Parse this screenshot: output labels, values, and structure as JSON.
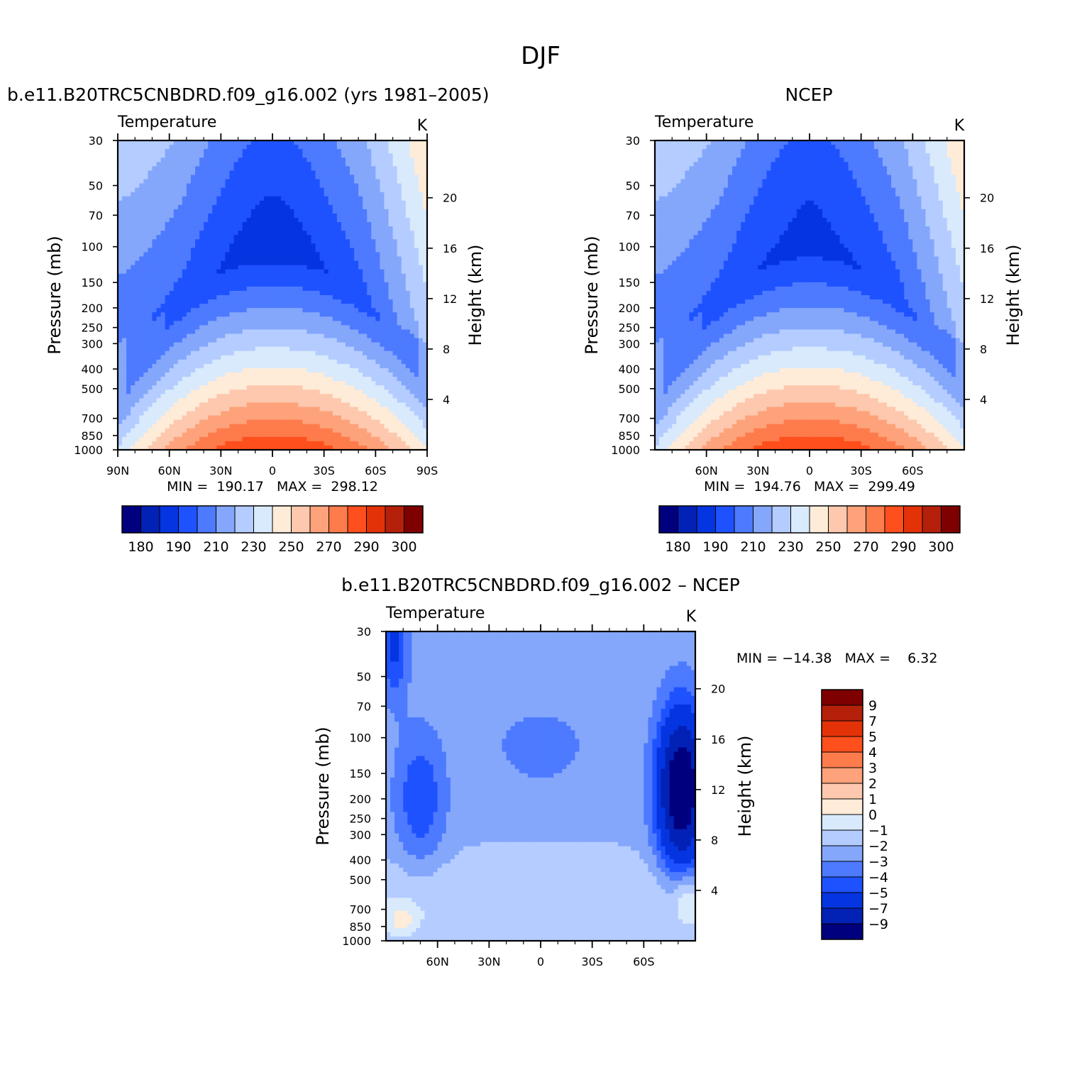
{
  "figure": {
    "title": "DJF",
    "panels": [
      {
        "id": "model",
        "title": "b.e11.B20TRC5CNBDRD.f09_g16.002 (yrs 1981–2005)",
        "field_label": "Temperature",
        "units": "K",
        "min_max": "MIN =  190.17   MAX =  298.12"
      },
      {
        "id": "obs",
        "title": "NCEP",
        "field_label": "Temperature",
        "units": "K",
        "min_max": "MIN =  194.76   MAX =  299.49"
      },
      {
        "id": "diff",
        "title": "b.e11.B20TRC5CNBDRD.f09_g16.002 – NCEP",
        "field_label": "Temperature",
        "units": "K",
        "min_max": "MIN = −14.38   MAX =    6.32"
      }
    ],
    "axes": {
      "pressure_label": "Pressure (mb)",
      "height_label": "Height (km)",
      "pressure_ticks": [
        "30",
        "50",
        "70",
        "100",
        "150",
        "200",
        "250",
        "300",
        "400",
        "500",
        "700",
        "850",
        "1000"
      ],
      "height_ticks": [
        "20",
        "16",
        "12",
        "8",
        "4"
      ],
      "lat_ticks_full": [
        "90N",
        "60N",
        "30N",
        "0",
        "30S",
        "60S",
        "90S"
      ],
      "lat_ticks_inner": [
        "60N",
        "30N",
        "0",
        "30S",
        "60S"
      ]
    }
  },
  "chart_data": [
    {
      "type": "heatmap",
      "panel": "model",
      "title": "b.e11.B20TRC5CNBDRD.f09_g16.002 (yrs 1981–2005)",
      "field": "Temperature",
      "units": "K",
      "xlabel": "",
      "ylabel": "Pressure (mb)",
      "ylabel_right": "Height (km)",
      "x_range": [
        "90N",
        "90S"
      ],
      "y_range": [
        30,
        1000
      ],
      "y_scale": "log",
      "min": 190.17,
      "max": 298.12,
      "levels": [
        180,
        190,
        200,
        210,
        220,
        230,
        240,
        250,
        260,
        270,
        280,
        290,
        300
      ],
      "colorbar_labels": [
        "180",
        "190",
        "210",
        "230",
        "250",
        "270",
        "290",
        "300"
      ],
      "colors": [
        "#00007f",
        "#0221b5",
        "#0535e0",
        "#1f52ff",
        "#4d7aff",
        "#84a7fb",
        "#b4ccff",
        "#d8eafb",
        "#feebd8",
        "#fdc8ad",
        "#fda27a",
        "#fe7b4c",
        "#fe4f1d",
        "#e33208",
        "#b5200a",
        "#7e0000"
      ]
    },
    {
      "type": "heatmap",
      "panel": "obs",
      "title": "NCEP",
      "field": "Temperature",
      "units": "K",
      "xlabel": "",
      "ylabel": "Pressure (mb)",
      "ylabel_right": "Height (km)",
      "x_range": [
        "90N",
        "90S"
      ],
      "y_range": [
        30,
        1000
      ],
      "y_scale": "log",
      "min": 194.76,
      "max": 299.49,
      "levels": [
        180,
        190,
        200,
        210,
        220,
        230,
        240,
        250,
        260,
        270,
        280,
        290,
        300
      ],
      "colorbar_labels": [
        "180",
        "190",
        "210",
        "230",
        "250",
        "270",
        "290",
        "300"
      ],
      "colors": [
        "#00007f",
        "#0221b5",
        "#0535e0",
        "#1f52ff",
        "#4d7aff",
        "#84a7fb",
        "#b4ccff",
        "#d8eafb",
        "#feebd8",
        "#fdc8ad",
        "#fda27a",
        "#fe7b4c",
        "#fe4f1d",
        "#e33208",
        "#b5200a",
        "#7e0000"
      ]
    },
    {
      "type": "heatmap",
      "panel": "diff",
      "title": "b.e11.B20TRC5CNBDRD.f09_g16.002 – NCEP",
      "field": "Temperature",
      "units": "K",
      "xlabel": "",
      "ylabel": "Pressure (mb)",
      "ylabel_right": "Height (km)",
      "x_range": [
        "90N",
        "90S"
      ],
      "y_range": [
        30,
        1000
      ],
      "y_scale": "log",
      "min": -14.38,
      "max": 6.32,
      "levels": [
        -9,
        -7,
        -5,
        -4,
        -3,
        -2,
        -1,
        0,
        1,
        2,
        3,
        4,
        5,
        7,
        9
      ],
      "colorbar_labels": [
        "9",
        "7",
        "5",
        "4",
        "3",
        "2",
        "1",
        "0",
        "−1",
        "−2",
        "−3",
        "−4",
        "−5",
        "−7",
        "−9"
      ],
      "colors": [
        "#7e0000",
        "#b5200a",
        "#e33208",
        "#fe4f1d",
        "#fe7b4c",
        "#fda27a",
        "#fdc8ad",
        "#feebd8",
        "#d8eafb",
        "#b4ccff",
        "#84a7fb",
        "#4d7aff",
        "#1f52ff",
        "#0535e0",
        "#0221b5",
        "#00007f"
      ]
    }
  ]
}
